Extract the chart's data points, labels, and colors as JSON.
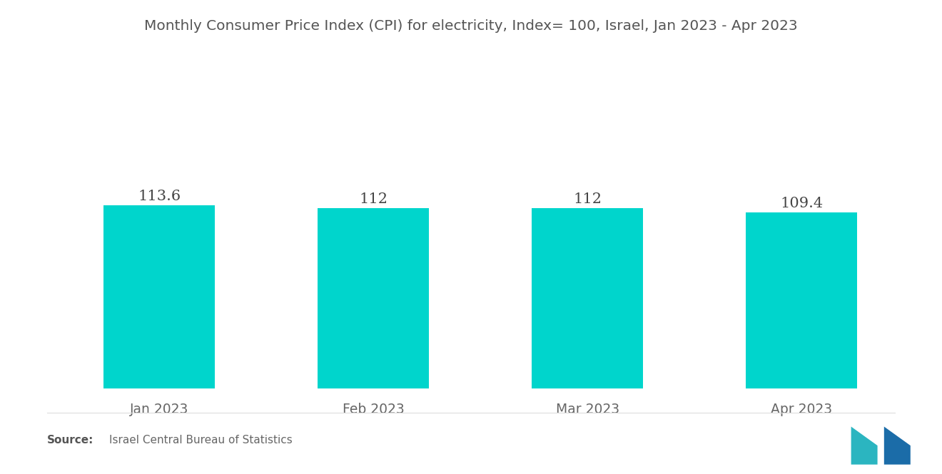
{
  "title": "Monthly Consumer Price Index (CPI) for electricity, Index= 100, Israel, Jan 2023 - Apr 2023",
  "categories": [
    "Jan 2023",
    "Feb 2023",
    "Mar 2023",
    "Apr 2023"
  ],
  "values": [
    113.6,
    112,
    112,
    109.4
  ],
  "bar_color": "#00D5CC",
  "value_labels": [
    "113.6",
    "112",
    "112",
    "109.4"
  ],
  "title_fontsize": 14.5,
  "label_fontsize": 13.5,
  "value_fontsize": 15,
  "source_bold": "Source:",
  "source_normal": "  Israel Central Bureau of Statistics",
  "background_color": "#ffffff",
  "title_color": "#555555",
  "label_color": "#666666",
  "value_color": "#444444",
  "ylim": [
    0,
    200
  ],
  "bar_width": 0.52
}
